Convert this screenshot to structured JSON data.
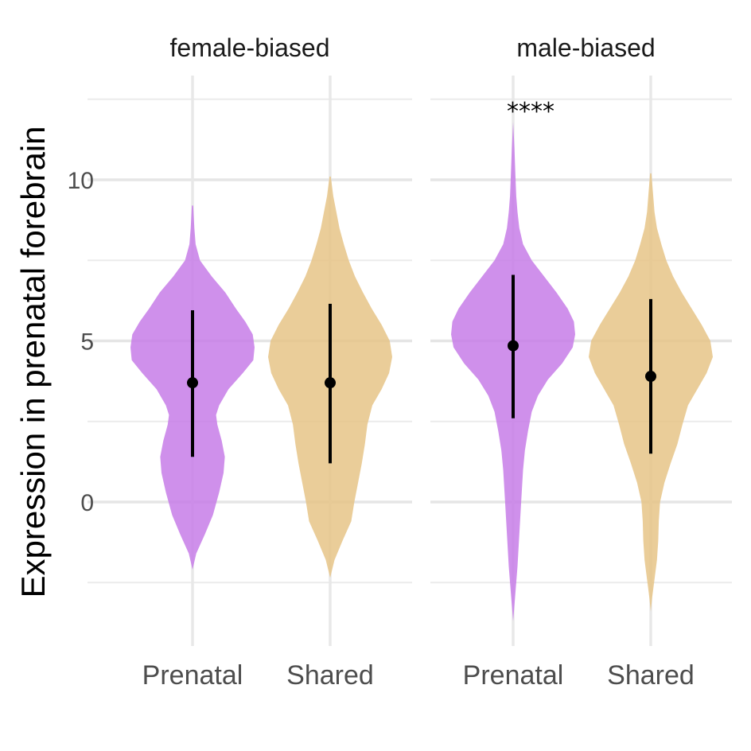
{
  "chart_data": {
    "type": "violin",
    "ylabel": "Expression in prenatal forebrain",
    "ylim": [
      -4.5,
      13.5
    ],
    "yticks": [
      0,
      5,
      10
    ],
    "yticklabels": [
      "0",
      "5",
      "10"
    ],
    "grid": true,
    "categories": [
      "Prenatal",
      "Shared"
    ],
    "colors": {
      "Prenatal": "#c77de8",
      "Shared": "#e6c487"
    },
    "panels": [
      {
        "title": "female-biased",
        "violins": [
          {
            "category": "Prenatal",
            "median": 3.7,
            "lower": 1.4,
            "upper": 5.95,
            "profile": [
              [
                -2.1,
                0.0
              ],
              [
                -1.6,
                0.06
              ],
              [
                -1.0,
                0.2
              ],
              [
                -0.4,
                0.33
              ],
              [
                0.3,
                0.43
              ],
              [
                0.9,
                0.5
              ],
              [
                1.4,
                0.52
              ],
              [
                1.9,
                0.47
              ],
              [
                2.4,
                0.4
              ],
              [
                2.7,
                0.38
              ],
              [
                3.0,
                0.43
              ],
              [
                3.5,
                0.58
              ],
              [
                4.0,
                0.81
              ],
              [
                4.4,
                0.98
              ],
              [
                4.8,
                1.0
              ],
              [
                5.2,
                0.97
              ],
              [
                5.6,
                0.85
              ],
              [
                6.0,
                0.7
              ],
              [
                6.5,
                0.53
              ],
              [
                7.0,
                0.31
              ],
              [
                7.5,
                0.12
              ],
              [
                8.0,
                0.05
              ],
              [
                8.5,
                0.03
              ],
              [
                9.2,
                0.01
              ]
            ]
          },
          {
            "category": "Shared",
            "median": 3.7,
            "lower": 1.2,
            "upper": 6.15,
            "profile": [
              [
                -2.35,
                0.0
              ],
              [
                -1.8,
                0.07
              ],
              [
                -1.2,
                0.2
              ],
              [
                -0.6,
                0.34
              ],
              [
                0.0,
                0.39
              ],
              [
                0.6,
                0.45
              ],
              [
                1.2,
                0.51
              ],
              [
                1.8,
                0.56
              ],
              [
                2.4,
                0.6
              ],
              [
                3.0,
                0.68
              ],
              [
                3.5,
                0.83
              ],
              [
                4.0,
                0.95
              ],
              [
                4.5,
                1.0
              ],
              [
                5.0,
                0.96
              ],
              [
                5.5,
                0.83
              ],
              [
                6.0,
                0.67
              ],
              [
                6.5,
                0.53
              ],
              [
                7.0,
                0.4
              ],
              [
                7.5,
                0.3
              ],
              [
                8.0,
                0.22
              ],
              [
                8.5,
                0.15
              ],
              [
                9.0,
                0.1
              ],
              [
                9.5,
                0.05
              ],
              [
                10.1,
                0.01
              ]
            ]
          }
        ]
      },
      {
        "title": "male-biased",
        "annotation": "****",
        "violins": [
          {
            "category": "Prenatal",
            "median": 4.85,
            "lower": 2.6,
            "upper": 7.05,
            "profile": [
              [
                -3.7,
                0.0
              ],
              [
                -3.0,
                0.03
              ],
              [
                -2.0,
                0.07
              ],
              [
                -1.0,
                0.1
              ],
              [
                0.0,
                0.13
              ],
              [
                1.0,
                0.16
              ],
              [
                1.6,
                0.19
              ],
              [
                2.2,
                0.24
              ],
              [
                2.8,
                0.3
              ],
              [
                3.3,
                0.4
              ],
              [
                3.8,
                0.56
              ],
              [
                4.3,
                0.79
              ],
              [
                4.8,
                0.96
              ],
              [
                5.2,
                1.0
              ],
              [
                5.6,
                0.98
              ],
              [
                6.0,
                0.88
              ],
              [
                6.5,
                0.7
              ],
              [
                7.0,
                0.5
              ],
              [
                7.5,
                0.3
              ],
              [
                8.0,
                0.16
              ],
              [
                8.5,
                0.1
              ],
              [
                9.0,
                0.07
              ],
              [
                9.5,
                0.05
              ],
              [
                10.0,
                0.04
              ],
              [
                11.0,
                0.02
              ],
              [
                11.8,
                0.0
              ]
            ]
          },
          {
            "category": "Shared",
            "median": 3.9,
            "lower": 1.5,
            "upper": 6.3,
            "profile": [
              [
                -3.4,
                0.0
              ],
              [
                -3.0,
                0.02
              ],
              [
                -2.4,
                0.06
              ],
              [
                -1.8,
                0.1
              ],
              [
                -1.2,
                0.12
              ],
              [
                -0.6,
                0.13
              ],
              [
                0.0,
                0.15
              ],
              [
                0.6,
                0.22
              ],
              [
                1.2,
                0.32
              ],
              [
                1.8,
                0.43
              ],
              [
                2.4,
                0.51
              ],
              [
                3.0,
                0.6
              ],
              [
                3.5,
                0.75
              ],
              [
                4.0,
                0.9
              ],
              [
                4.5,
                1.0
              ],
              [
                5.0,
                0.96
              ],
              [
                5.5,
                0.82
              ],
              [
                6.0,
                0.66
              ],
              [
                6.5,
                0.5
              ],
              [
                7.0,
                0.36
              ],
              [
                7.5,
                0.25
              ],
              [
                8.0,
                0.17
              ],
              [
                8.5,
                0.1
              ],
              [
                9.0,
                0.06
              ],
              [
                9.5,
                0.04
              ],
              [
                10.2,
                0.01
              ]
            ]
          }
        ]
      }
    ]
  }
}
